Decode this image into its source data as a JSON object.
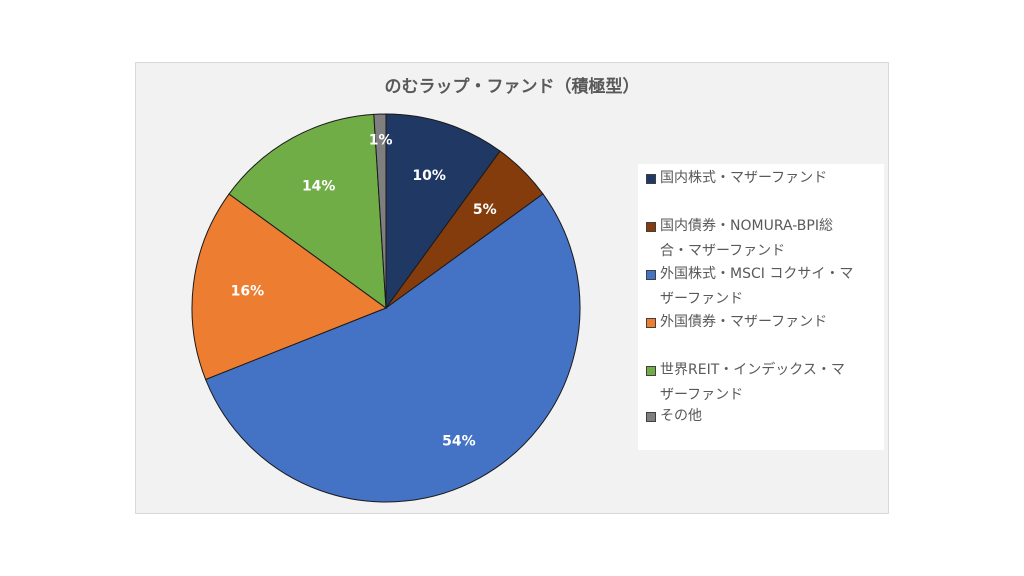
{
  "chart_data": {
    "type": "pie",
    "title": "のむラップ・ファンド（積極型）",
    "slices": [
      {
        "label": "国内株式・マザーファンド",
        "value": 10,
        "color": "#203864",
        "data_label": "10%"
      },
      {
        "label": "国内債券・NOMURA-BPI総合・マザーファンド",
        "value": 5,
        "color": "#843c0c",
        "data_label": "5%"
      },
      {
        "label": "外国株式・MSCI コクサイ・マザーファンド",
        "value": 54,
        "color": "#4472c4",
        "data_label": "54%"
      },
      {
        "label": "外国債券・マザーファンド",
        "value": 16,
        "color": "#ed7d31",
        "data_label": "16%"
      },
      {
        "label": "世界REIT・インデックス・マザーファンド",
        "value": 14,
        "color": "#70ad47",
        "data_label": "14%"
      },
      {
        "label": "その他",
        "value": 1,
        "color": "#7f7f7f",
        "data_label": "1%"
      }
    ],
    "legend_position": "right"
  },
  "legend": {
    "items": [
      {
        "line1": "国内株式・マザーファンド",
        "line2": ""
      },
      {
        "line1": "国内債券・NOMURA-BPI総",
        "line2": "合・マザーファンド"
      },
      {
        "line1": "外国株式・MSCI コクサイ・マ",
        "line2": "ザーファンド"
      },
      {
        "line1": "外国債券・マザーファンド",
        "line2": ""
      },
      {
        "line1": "世界REIT・インデックス・マ",
        "line2": "ザーファンド"
      },
      {
        "line1": "その他",
        "line2": ""
      }
    ]
  }
}
